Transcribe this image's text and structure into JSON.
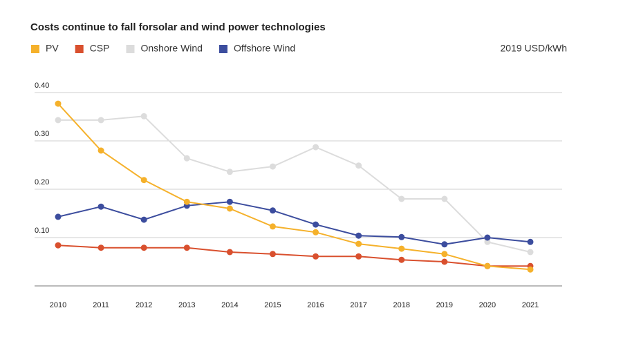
{
  "chart_data": {
    "type": "line",
    "title": "Costs continue to fall forsolar and wind power technologies",
    "unit_label": "2019 USD/kWh",
    "categories": [
      "2010",
      "2011",
      "2012",
      "2013",
      "2014",
      "2015",
      "2016",
      "2017",
      "2018",
      "2019",
      "2020",
      "2021"
    ],
    "series": [
      {
        "name": "PV",
        "color": "#f5b12b",
        "values": [
          0.377,
          0.28,
          0.219,
          0.174,
          0.16,
          0.123,
          0.111,
          0.087,
          0.077,
          0.066,
          0.041,
          0.034
        ]
      },
      {
        "name": "CSP",
        "color": "#d9502e",
        "values": [
          0.084,
          0.079,
          0.079,
          0.079,
          0.07,
          0.066,
          0.061,
          0.061,
          0.054,
          0.05,
          0.041,
          0.041
        ]
      },
      {
        "name": "Onshore Wind",
        "color": "#dcdcdc",
        "values": [
          0.343,
          0.343,
          0.351,
          0.264,
          0.236,
          0.247,
          0.287,
          0.249,
          0.18,
          0.18,
          0.091,
          0.07
        ]
      },
      {
        "name": "Offshore Wind",
        "color": "#3c4d9e",
        "values": [
          0.143,
          0.164,
          0.137,
          0.166,
          0.174,
          0.156,
          0.127,
          0.104,
          0.101,
          0.086,
          0.1,
          0.091
        ]
      }
    ],
    "ylim": [
      0,
      0.4
    ],
    "yticks": [
      {
        "value": 0.1,
        "label": "0.10"
      },
      {
        "value": 0.2,
        "label": "0.20"
      },
      {
        "value": 0.3,
        "label": "0.30"
      },
      {
        "value": 0.4,
        "label": "0.40"
      }
    ],
    "grid": true
  }
}
